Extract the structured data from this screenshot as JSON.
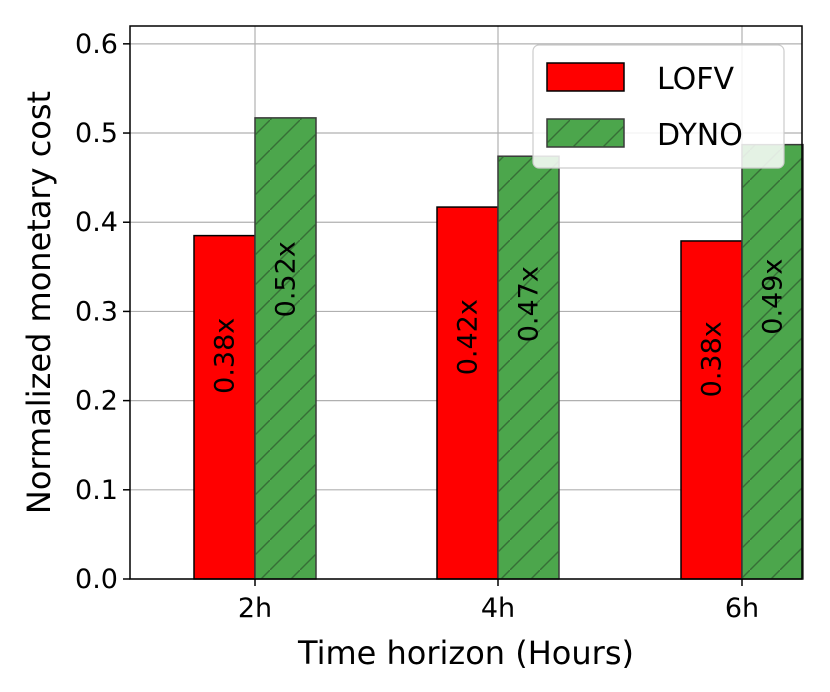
{
  "chart_data": {
    "type": "bar",
    "xlabel": "Time horizon (Hours)",
    "ylabel": "Normalized monetary cost",
    "categories": [
      "2h",
      "4h",
      "6h"
    ],
    "ylim": [
      0,
      0.62
    ],
    "yticks": [
      "0.0",
      "0.1",
      "0.2",
      "0.3",
      "0.4",
      "0.5",
      "0.6"
    ],
    "grid": true,
    "legend_position": "top-right",
    "series": [
      {
        "name": "LOFV",
        "values": [
          0.385,
          0.417,
          0.379
        ],
        "labels": [
          "0.38x",
          "0.42x",
          "0.38x"
        ],
        "color": "#ff0000",
        "hatch": "none"
      },
      {
        "name": "DYNO",
        "values": [
          0.517,
          0.474,
          0.487
        ],
        "labels": [
          "0.52x",
          "0.47x",
          "0.49x"
        ],
        "color": "#4ca64c",
        "hatch": "diagonal"
      }
    ]
  }
}
